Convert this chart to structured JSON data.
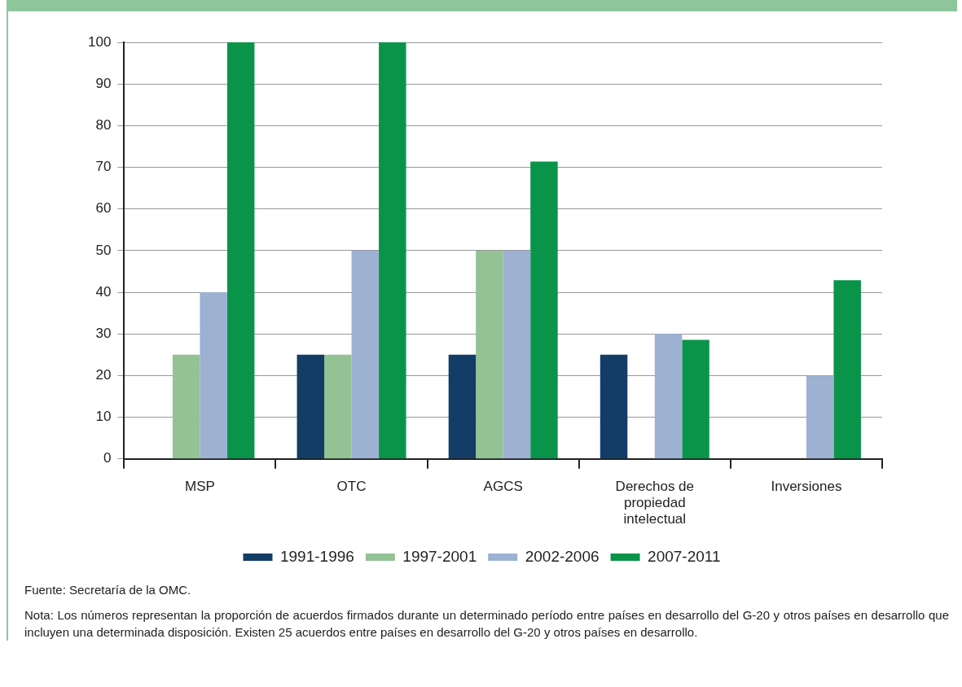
{
  "chart_data": {
    "type": "bar",
    "categories": [
      "MSP",
      "OTC",
      "AGCS",
      "Derechos de propiedad intelectual",
      "Inversiones"
    ],
    "series": [
      {
        "name": "1991-1996",
        "color": "#133d66",
        "values": [
          0,
          25,
          25,
          25,
          0
        ]
      },
      {
        "name": "1997-2001",
        "color": "#93c295",
        "values": [
          25,
          25,
          50,
          0,
          0
        ]
      },
      {
        "name": "2002-2006",
        "color": "#9db1d2",
        "values": [
          40,
          50,
          50,
          30,
          20
        ]
      },
      {
        "name": "2007-2011",
        "color": "#0a944a",
        "values": [
          100,
          100,
          71.4,
          28.6,
          42.9
        ]
      }
    ],
    "ylim": [
      0,
      100
    ],
    "yticks": [
      0,
      10,
      20,
      30,
      40,
      50,
      60,
      70,
      80,
      90,
      100
    ],
    "grid": "y",
    "legend": "bottom",
    "annotations": [
      "Fuente: Secretaría de la OMC.",
      "Nota: Los números representan la proporción de acuerdos firmados durante un determinado período entre países en desarrollo del G-20 y otros países en desarrollo que incluyen una determinada disposición. Existen 25 acuerdos entre países en desarrollo del G-20 y otros países en desarrollo."
    ]
  }
}
